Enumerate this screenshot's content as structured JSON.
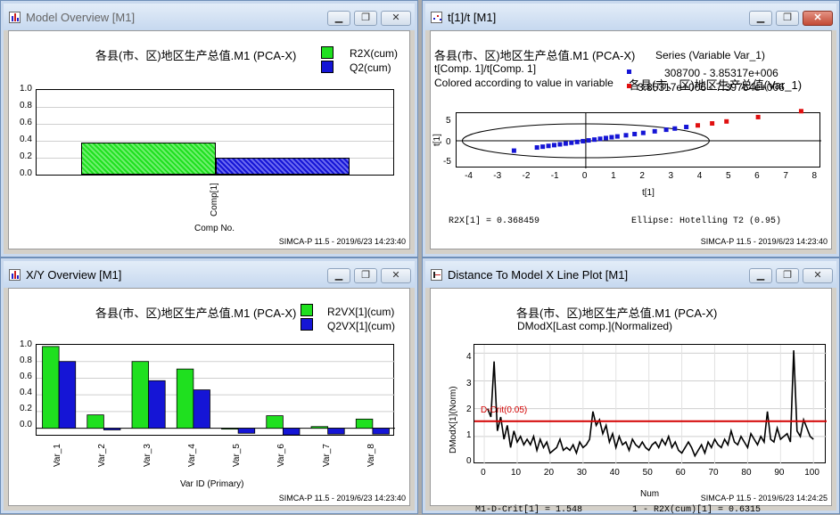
{
  "windows": {
    "model_overview": {
      "title": "Model Overview [M1]",
      "chart_title": "各县(市、区)地区生产总值.M1 (PCA-X)",
      "legend": [
        "R2X(cum)",
        "Q2(cum)"
      ],
      "yticks": [
        "1.0",
        "0.8",
        "0.6",
        "0.4",
        "0.2",
        "0.0"
      ],
      "category": "Comp[1]",
      "xlabel": "Comp No.",
      "footer": "SIMCA-P 11.5 - 2019/6/23 14:23:40"
    },
    "score_plot": {
      "title": "t[1]/t [M1]",
      "chart_title": "各县(市、区)地区生产总值.M1 (PCA-X)",
      "line2": "t[Comp. 1]/t[Comp. 1]",
      "line3": "Colored according to value in variable",
      "series_title": "Series (Variable Var_1)",
      "series_sub": "各县(市、区)地区生产总值(Var_1)",
      "legend": [
        "308700 - 3.85317e+006",
        "3.85317e+006 - 7.39764e+006"
      ],
      "yticks": [
        "5",
        "0",
        "-5"
      ],
      "xticks": [
        "-4",
        "-3",
        "-2",
        "-1",
        "0",
        "1",
        "2",
        "3",
        "4",
        "5",
        "6",
        "7",
        "8"
      ],
      "xlabel": "t[1]",
      "ylabel": "t[1]",
      "r2x_text": "R2X[1] = 0.368459",
      "ellipse_text": "Ellipse: Hotelling T2 (0.95)",
      "footer": "SIMCA-P 11.5 - 2019/6/23 14:23:40"
    },
    "xy_overview": {
      "title": "X/Y Overview [M1]",
      "chart_title": "各县(市、区)地区生产总值.M1 (PCA-X)",
      "legend": [
        "R2VX[1](cum)",
        "Q2VX[1](cum)"
      ],
      "yticks": [
        "1.0",
        "0.8",
        "0.6",
        "0.4",
        "0.2",
        "0.0"
      ],
      "xlabel": "Var ID (Primary)",
      "footer": "SIMCA-P 11.5 - 2019/6/23 14:23:40"
    },
    "dmodx": {
      "title": "Distance To Model X Line Plot [M1]",
      "chart_title": "各县(市、区)地区生产总值.M1 (PCA-X)",
      "subtitle": "DModX[Last comp.](Normalized)",
      "ylabel": "DModX[1](Norm)",
      "xlabel": "Num",
      "crit_label": "D-Crit(0.05)",
      "yticks": [
        "4",
        "3",
        "2",
        "1",
        "0"
      ],
      "xticks": [
        "0",
        "10",
        "20",
        "30",
        "40",
        "50",
        "60",
        "70",
        "80",
        "90",
        "100"
      ],
      "crit_text": "M1-D-Crit[1] = 1.548",
      "r2x_text": "1 - R2X(cum)[1] = 0.6315",
      "footer": "SIMCA-P 11.5 - 2019/6/23 14:24:25"
    }
  },
  "colors": {
    "green": "#1fe01f",
    "blue": "#1515d6",
    "red": "#e01010",
    "crit": "#d40000"
  },
  "chart_data": [
    {
      "type": "bar",
      "categories": [
        "Comp[1]"
      ],
      "series": [
        {
          "name": "R2X(cum)",
          "values": [
            0.368
          ]
        },
        {
          "name": "Q2(cum)",
          "values": [
            0.2
          ]
        }
      ],
      "title": "各县(市、区)地区生产总值.M1 (PCA-X)",
      "xlabel": "Comp No.",
      "ylabel": "",
      "ylim": [
        0,
        1
      ]
    },
    {
      "type": "scatter",
      "title": "t[Comp. 1]/t[Comp. 1]",
      "xlabel": "t[1]",
      "ylabel": "t[1]",
      "xlim": [
        -4.5,
        8.2
      ],
      "ylim": [
        -7,
        7
      ],
      "series": [
        {
          "name": "308700 - 3.85317e+006",
          "points": [
            [
              -2.5,
              -2.5
            ],
            [
              -1.7,
              -1.7
            ],
            [
              -1.5,
              -1.5
            ],
            [
              -1.3,
              -1.3
            ],
            [
              -1.1,
              -1.1
            ],
            [
              -0.9,
              -0.9
            ],
            [
              -0.7,
              -0.7
            ],
            [
              -0.5,
              -0.5
            ],
            [
              -0.3,
              -0.3
            ],
            [
              -0.1,
              -0.1
            ],
            [
              0.1,
              0.1
            ],
            [
              0.3,
              0.3
            ],
            [
              0.5,
              0.5
            ],
            [
              0.7,
              0.7
            ],
            [
              0.9,
              0.9
            ],
            [
              1.1,
              1.1
            ],
            [
              1.4,
              1.4
            ],
            [
              1.7,
              1.7
            ],
            [
              2.0,
              2.0
            ],
            [
              2.4,
              2.4
            ],
            [
              2.8,
              2.8
            ],
            [
              3.1,
              3.1
            ],
            [
              3.5,
              3.5
            ]
          ]
        },
        {
          "name": "3.85317e+006 - 7.39764e+006",
          "points": [
            [
              3.9,
              3.9
            ],
            [
              4.4,
              4.4
            ],
            [
              4.9,
              4.9
            ],
            [
              6.0,
              6.0
            ],
            [
              7.5,
              7.5
            ]
          ]
        }
      ],
      "ellipse": {
        "rx": 4.3,
        "ry": 4.3
      }
    },
    {
      "type": "bar",
      "categories": [
        "Var_1",
        "Var_2",
        "Var_3",
        "Var_4",
        "Var_5",
        "Var_6",
        "Var_7",
        "Var_8"
      ],
      "series": [
        {
          "name": "R2VX[1](cum)",
          "values": [
            0.98,
            0.16,
            0.8,
            0.71,
            -0.01,
            0.15,
            0.02,
            0.11
          ]
        },
        {
          "name": "Q2VX[1](cum)",
          "values": [
            0.8,
            -0.02,
            0.57,
            0.46,
            -0.06,
            -0.08,
            -0.07,
            -0.07
          ]
        }
      ],
      "xlabel": "Var ID (Primary)",
      "ylim": [
        -0.1,
        1.0
      ]
    },
    {
      "type": "line",
      "title": "DModX[Last comp.](Normalized)",
      "xlabel": "Num",
      "ylabel": "DModX[1](Norm)",
      "xlim": [
        -3,
        104
      ],
      "ylim": [
        0,
        4.3
      ],
      "critical_value": 1.548,
      "x": [
        1,
        2,
        3,
        4,
        5,
        6,
        7,
        8,
        9,
        10,
        11,
        12,
        13,
        14,
        15,
        16,
        17,
        18,
        19,
        20,
        21,
        22,
        23,
        24,
        25,
        26,
        27,
        28,
        29,
        30,
        31,
        32,
        33,
        34,
        35,
        36,
        37,
        38,
        39,
        40,
        41,
        42,
        43,
        44,
        45,
        46,
        47,
        48,
        49,
        50,
        51,
        52,
        53,
        54,
        55,
        56,
        57,
        58,
        59,
        60,
        61,
        62,
        63,
        64,
        65,
        66,
        67,
        68,
        69,
        70,
        71,
        72,
        73,
        74,
        75,
        76,
        77,
        78,
        79,
        80,
        81,
        82,
        83,
        84,
        85,
        86,
        87,
        88,
        89,
        90,
        91,
        92,
        93,
        94,
        95,
        96,
        97,
        98,
        99,
        100
      ],
      "values": [
        2.0,
        1.7,
        3.7,
        1.2,
        1.7,
        0.9,
        1.4,
        0.6,
        1.2,
        0.8,
        1.0,
        0.7,
        0.9,
        0.7,
        1.0,
        0.5,
        0.9,
        0.6,
        0.8,
        0.4,
        0.5,
        0.6,
        0.9,
        0.5,
        0.6,
        0.5,
        0.7,
        0.4,
        0.8,
        0.6,
        0.7,
        0.9,
        1.9,
        1.4,
        1.6,
        1.1,
        1.4,
        0.8,
        1.1,
        0.6,
        1.0,
        0.7,
        0.8,
        0.5,
        0.9,
        0.7,
        0.6,
        0.8,
        0.6,
        0.5,
        0.7,
        0.8,
        0.6,
        0.9,
        0.7,
        1.0,
        0.6,
        0.8,
        0.5,
        0.4,
        0.6,
        0.8,
        0.6,
        0.3,
        0.5,
        0.7,
        0.4,
        0.8,
        0.6,
        0.9,
        0.7,
        0.6,
        0.9,
        0.7,
        1.2,
        0.8,
        0.7,
        1.0,
        0.8,
        0.6,
        1.1,
        0.9,
        0.7,
        1.0,
        0.8,
        1.9,
        0.9,
        0.8,
        1.3,
        0.9,
        1.0,
        1.1,
        0.8,
        4.1,
        1.2,
        1.0,
        1.6,
        1.3,
        1.0,
        0.9
      ]
    }
  ]
}
